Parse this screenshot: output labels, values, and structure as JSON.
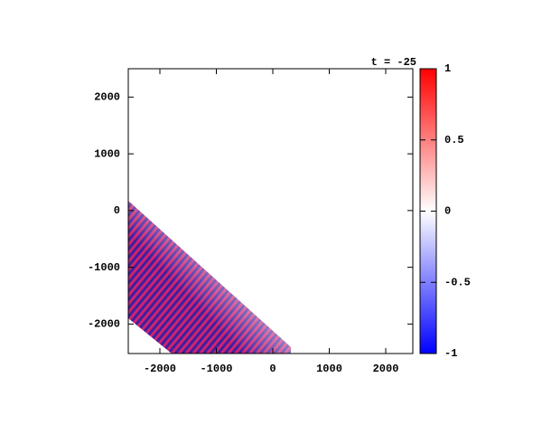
{
  "chart_data": {
    "type": "heatmap",
    "title": "t = -25",
    "xlim": [
      -2560,
      2480
    ],
    "xticks": [
      -2000,
      -1000,
      0,
      1000,
      2000
    ],
    "ylim": [
      -2520,
      2500
    ],
    "yticks": [
      -2000,
      -1000,
      0,
      1000,
      2000
    ],
    "colormap": [
      "#0000ff",
      "#ffffff",
      "#ff0000"
    ],
    "zlim": [
      -1,
      1
    ],
    "zticks": [
      -1,
      -0.5,
      0,
      0.5,
      1
    ]
  }
}
